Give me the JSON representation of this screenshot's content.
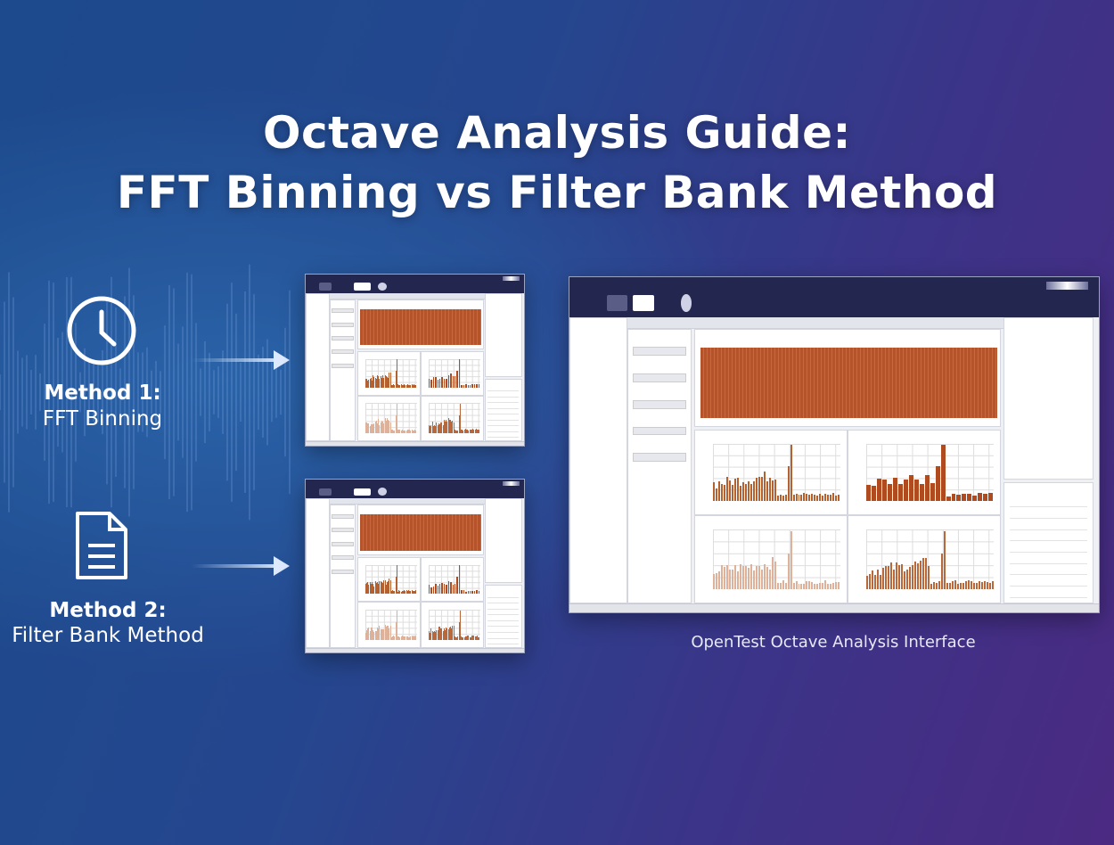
{
  "title": {
    "line1": "Octave Analysis Guide:",
    "line2": "FFT Binning vs Filter Bank Method"
  },
  "methods": [
    {
      "heading": "Method 1:",
      "name": "FFT Binning",
      "icon": "clock-icon"
    },
    {
      "heading": "Method 2:",
      "name": "Filter Bank Method",
      "icon": "document-icon"
    }
  ],
  "caption": "OpenTest Octave Analysis Interface",
  "colors": {
    "bar": "#b5532a",
    "bar_light": "#d9a58a",
    "window_header": "#23264f",
    "background_left": "#1c4a8c",
    "background_right": "#4b2a82"
  }
}
